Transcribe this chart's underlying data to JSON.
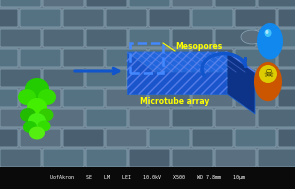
{
  "bg_color": "#6a7e8e",
  "brick_mortar_color": "#8eaabb",
  "brick_face_colors": [
    "#5a7080",
    "#506878",
    "#4e6575",
    "#557282",
    "#4a6070"
  ],
  "status_bar_color": "#0a0a0a",
  "status_text": "UofAkron    SE    LM    LEI    10.0kV    X500    WD 7.8mm    10μm",
  "mesopores_label": "Mesopores",
  "microtube_label": "Microtube array",
  "label_color_yellow": "#ffff00",
  "arrow_blue": "#1155cc",
  "monolith_front": "#1a55cc",
  "monolith_top": "#2266dd",
  "monolith_right": "#0d3388",
  "monolith_stripe": "#6688ee",
  "dashed_box_color": "#4488ff",
  "tree_trunk": "#7a3510",
  "tree_green1": "#22cc00",
  "tree_green2": "#44ee00",
  "toxic_orange": "#cc5500",
  "toxic_yellow": "#ddcc00",
  "water_blue": "#1188ee",
  "fig_width": 2.95,
  "fig_height": 1.89,
  "dpi": 100
}
